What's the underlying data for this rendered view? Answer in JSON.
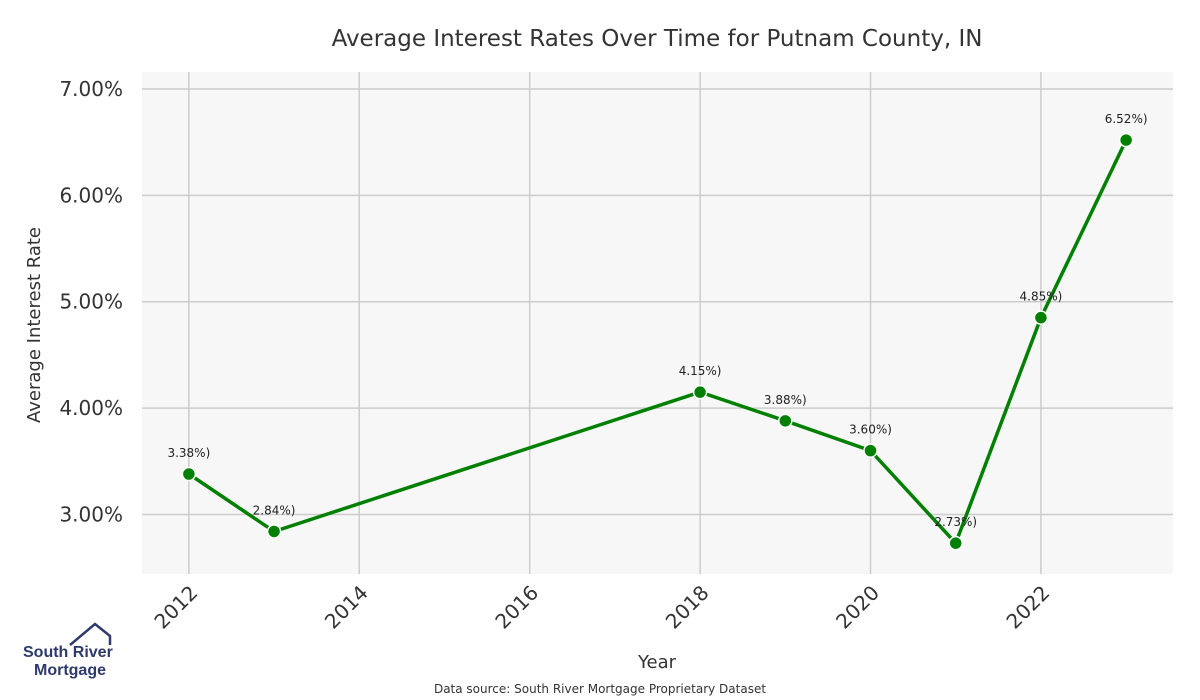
{
  "chart_data": {
    "type": "line",
    "title": "Average Interest Rates Over Time for Putnam County, IN",
    "xlabel": "Year",
    "ylabel": "Average Interest Rate",
    "x_ticks": [
      "2012",
      "2014",
      "2016",
      "2018",
      "2020",
      "2022"
    ],
    "y_ticks": [
      "3.00%",
      "4.00%",
      "5.00%",
      "6.00%",
      "7.00%"
    ],
    "xlim": [
      2011.45,
      2023.55
    ],
    "ylim": [
      2.44,
      7.16
    ],
    "grid": true,
    "series": [
      {
        "color": "#008000",
        "points": [
          {
            "x": 2012,
            "y": 3.38,
            "label": "3.38%)"
          },
          {
            "x": 2013,
            "y": 2.84,
            "label": "2.84%)"
          },
          {
            "x": 2018,
            "y": 4.15,
            "label": "4.15%)"
          },
          {
            "x": 2019,
            "y": 3.88,
            "label": "3.88%)"
          },
          {
            "x": 2020,
            "y": 3.6,
            "label": "3.60%)"
          },
          {
            "x": 2021,
            "y": 2.73,
            "label": "2.73%)"
          },
          {
            "x": 2022,
            "y": 4.85,
            "label": "4.85%)"
          },
          {
            "x": 2023,
            "y": 6.52,
            "label": "6.52%)"
          }
        ]
      }
    ]
  },
  "source_note": "Data source: South River Mortgage Proprietary Dataset",
  "logo": {
    "line1": "South River",
    "line2": "Mortgage"
  },
  "colors": {
    "line": "#008000",
    "plot_bg": "#f7f7f7",
    "grid": "#cccccc",
    "logo": "#2d3a6b"
  }
}
